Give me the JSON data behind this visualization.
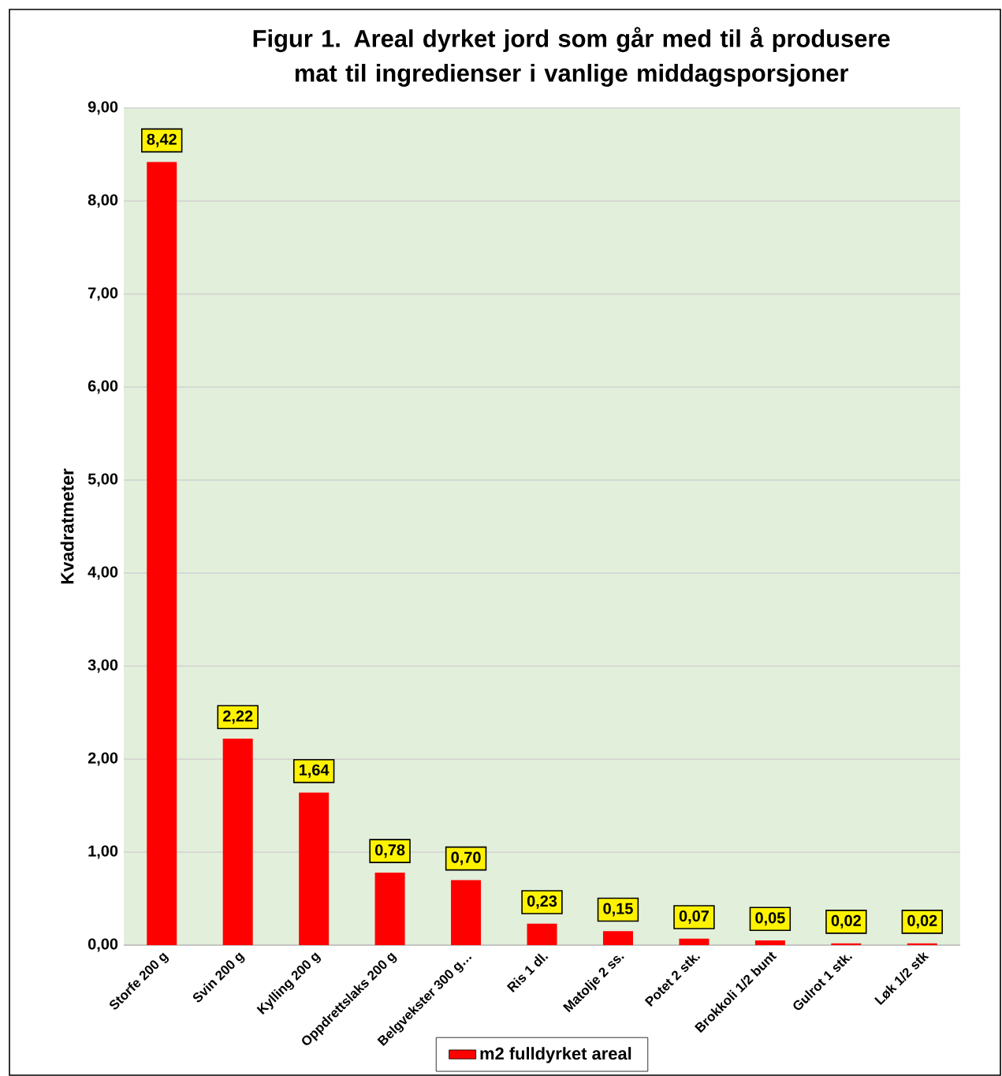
{
  "chart_data": {
    "type": "bar",
    "title": "Figur 1. Areal dyrket jord som går med til å produsere mat til ingredienser i vanlige middagsporsjoner",
    "ylabel": "Kvadratmeter",
    "categories": [
      "Storfe 200 g",
      "Svin 200 g",
      "Kylling 200 g",
      "Oppdrettslaks 200 g",
      "Belgvekster 300 g…",
      "Ris 1 dl.",
      "Matolje 2 ss.",
      "Potet 2 stk.",
      "Brokkoli 1/2 bunt",
      "Gulrot 1 stk.",
      "Løk 1/2 stk"
    ],
    "series": [
      {
        "name": "m2 fulldyrket areal",
        "color": "#ff0000",
        "values": [
          8.42,
          2.22,
          1.64,
          0.78,
          0.7,
          0.23,
          0.15,
          0.07,
          0.05,
          0.02,
          0.02
        ],
        "value_labels": [
          "8,42",
          "2,22",
          "1,64",
          "0,78",
          "0,70",
          "0,23",
          "0,15",
          "0,07",
          "0,05",
          "0,02",
          "0,02"
        ]
      }
    ],
    "ylim": [
      0,
      9
    ],
    "yticks": [
      {
        "value": 0,
        "label": "0,00"
      },
      {
        "value": 1,
        "label": "1,00"
      },
      {
        "value": 2,
        "label": "2,00"
      },
      {
        "value": 3,
        "label": "3,00"
      },
      {
        "value": 4,
        "label": "4,00"
      },
      {
        "value": 5,
        "label": "5,00"
      },
      {
        "value": 6,
        "label": "6,00"
      },
      {
        "value": 7,
        "label": "7,00"
      },
      {
        "value": 8,
        "label": "8,00"
      },
      {
        "value": 9,
        "label": "9,00"
      }
    ],
    "grid": "y",
    "legend": "bottom"
  }
}
